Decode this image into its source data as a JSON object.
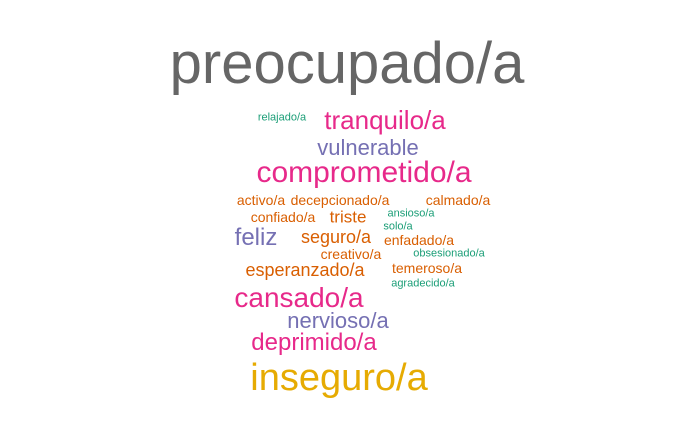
{
  "colors": {
    "gray": "#666666",
    "magenta": "#e7298a",
    "purple": "#7570b3",
    "orange": "#d95f02",
    "teal": "#1b9e77",
    "gold": "#e6ab02",
    "background": "#ffffff"
  },
  "words": [
    {
      "key": "preocupado",
      "text": "preocupado/a",
      "color": "#666666"
    },
    {
      "key": "relajado",
      "text": "relajado/a",
      "color": "#1b9e77"
    },
    {
      "key": "tranquilo",
      "text": "tranquilo/a",
      "color": "#e7298a"
    },
    {
      "key": "vulnerable",
      "text": "vulnerable",
      "color": "#7570b3"
    },
    {
      "key": "comprometido",
      "text": "comprometido/a",
      "color": "#e7298a"
    },
    {
      "key": "activo",
      "text": "activo/a",
      "color": "#d95f02"
    },
    {
      "key": "decepcionado",
      "text": "decepcionado/a",
      "color": "#d95f02"
    },
    {
      "key": "calmado",
      "text": "calmado/a",
      "color": "#d95f02"
    },
    {
      "key": "confiado",
      "text": "confiado/a",
      "color": "#d95f02"
    },
    {
      "key": "triste",
      "text": "triste",
      "color": "#d95f02"
    },
    {
      "key": "ansioso",
      "text": "ansioso/a",
      "color": "#1b9e77"
    },
    {
      "key": "solo",
      "text": "solo/a",
      "color": "#1b9e77"
    },
    {
      "key": "feliz",
      "text": "feliz",
      "color": "#7570b3"
    },
    {
      "key": "seguro",
      "text": "seguro/a",
      "color": "#d95f02"
    },
    {
      "key": "enfadado",
      "text": "enfadado/a",
      "color": "#d95f02"
    },
    {
      "key": "creativo",
      "text": "creativo/a",
      "color": "#d95f02"
    },
    {
      "key": "obsesionado",
      "text": "obsesionado/a",
      "color": "#1b9e77"
    },
    {
      "key": "esperanzado",
      "text": "esperanzado/a",
      "color": "#d95f02"
    },
    {
      "key": "temeroso",
      "text": "temeroso/a",
      "color": "#d95f02"
    },
    {
      "key": "agradecido",
      "text": "agradecido/a",
      "color": "#1b9e77"
    },
    {
      "key": "cansado",
      "text": "cansado/a",
      "color": "#e7298a"
    },
    {
      "key": "nervioso",
      "text": "nervioso/a",
      "color": "#7570b3"
    },
    {
      "key": "deprimido",
      "text": "deprimido/a",
      "color": "#e7298a"
    },
    {
      "key": "inseguro",
      "text": "inseguro/a",
      "color": "#e6ab02"
    }
  ]
}
